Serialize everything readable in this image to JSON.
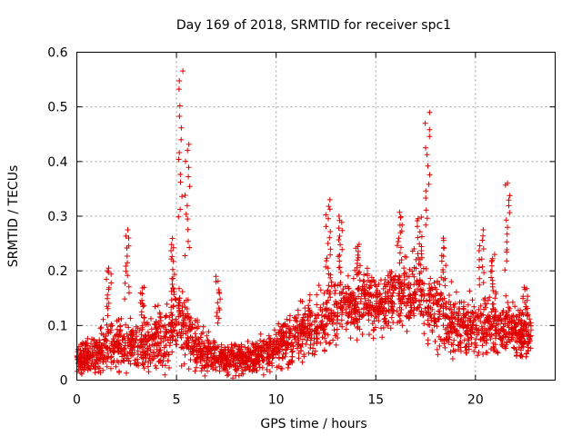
{
  "chart_data": {
    "type": "scatter",
    "title": "Day 169 of 2018, SRMTID for receiver spc1",
    "xlabel": "GPS time / hours",
    "ylabel": "SRMTID / TECUs",
    "xlim": [
      0,
      24
    ],
    "ylim": [
      0,
      0.6
    ],
    "x_ticks": [
      0,
      5,
      10,
      15,
      20
    ],
    "y_ticks": [
      0,
      0.1,
      0.2,
      0.3,
      0.4,
      0.5,
      0.6
    ],
    "x_tick_labels": [
      "0",
      "5",
      "10",
      "15",
      "20"
    ],
    "y_tick_labels": [
      "0",
      "0.1",
      "0.2",
      "0.3",
      "0.4",
      "0.5",
      "0.6"
    ],
    "grid": true,
    "marker": "plus",
    "color": "#e00000",
    "series": [
      {
        "name": "SRMTID",
        "envelope": {
          "x": [
            0,
            0.5,
            1,
            1.5,
            2,
            2.5,
            3,
            3.5,
            4,
            4.5,
            5,
            5.2,
            5.5,
            6,
            6.5,
            7,
            7.5,
            8,
            8.5,
            9,
            9.5,
            10,
            10.5,
            11,
            11.5,
            12,
            12.5,
            13,
            13.5,
            14,
            14.5,
            15,
            15.5,
            16,
            16.5,
            17,
            17.5,
            18,
            18.5,
            19,
            19.5,
            20,
            20.5,
            21,
            21.5,
            22,
            22.5,
            22.8
          ],
          "median": [
            0.04,
            0.045,
            0.05,
            0.06,
            0.065,
            0.07,
            0.06,
            0.065,
            0.07,
            0.08,
            0.1,
            0.11,
            0.09,
            0.06,
            0.05,
            0.045,
            0.04,
            0.04,
            0.04,
            0.045,
            0.05,
            0.06,
            0.07,
            0.08,
            0.09,
            0.1,
            0.12,
            0.13,
            0.14,
            0.14,
            0.15,
            0.14,
            0.14,
            0.15,
            0.16,
            0.16,
            0.15,
            0.13,
            0.11,
            0.1,
            0.1,
            0.1,
            0.1,
            0.1,
            0.1,
            0.09,
            0.08,
            0.08
          ],
          "spread": [
            0.03,
            0.035,
            0.04,
            0.05,
            0.05,
            0.06,
            0.05,
            0.05,
            0.06,
            0.07,
            0.08,
            0.09,
            0.07,
            0.05,
            0.04,
            0.035,
            0.03,
            0.03,
            0.03,
            0.03,
            0.035,
            0.04,
            0.05,
            0.055,
            0.06,
            0.07,
            0.08,
            0.07,
            0.065,
            0.06,
            0.06,
            0.06,
            0.06,
            0.06,
            0.065,
            0.07,
            0.07,
            0.07,
            0.07,
            0.06,
            0.06,
            0.06,
            0.06,
            0.06,
            0.055,
            0.05,
            0.05,
            0.05
          ]
        },
        "point_count": 2600,
        "peaks": [
          {
            "x": 1.6,
            "y": 0.21
          },
          {
            "x": 2.5,
            "y": 0.275
          },
          {
            "x": 3.3,
            "y": 0.17
          },
          {
            "x": 4.8,
            "y": 0.26
          },
          {
            "x": 5.2,
            "y": 0.57
          },
          {
            "x": 5.55,
            "y": 0.435
          },
          {
            "x": 7.1,
            "y": 0.19
          },
          {
            "x": 12.6,
            "y": 0.33
          },
          {
            "x": 13.2,
            "y": 0.3
          },
          {
            "x": 14.1,
            "y": 0.25
          },
          {
            "x": 16.2,
            "y": 0.31
          },
          {
            "x": 17.2,
            "y": 0.3
          },
          {
            "x": 17.6,
            "y": 0.49
          },
          {
            "x": 18.4,
            "y": 0.26
          },
          {
            "x": 20.3,
            "y": 0.275
          },
          {
            "x": 20.9,
            "y": 0.23
          },
          {
            "x": 21.6,
            "y": 0.365
          },
          {
            "x": 22.5,
            "y": 0.17
          }
        ]
      }
    ]
  }
}
